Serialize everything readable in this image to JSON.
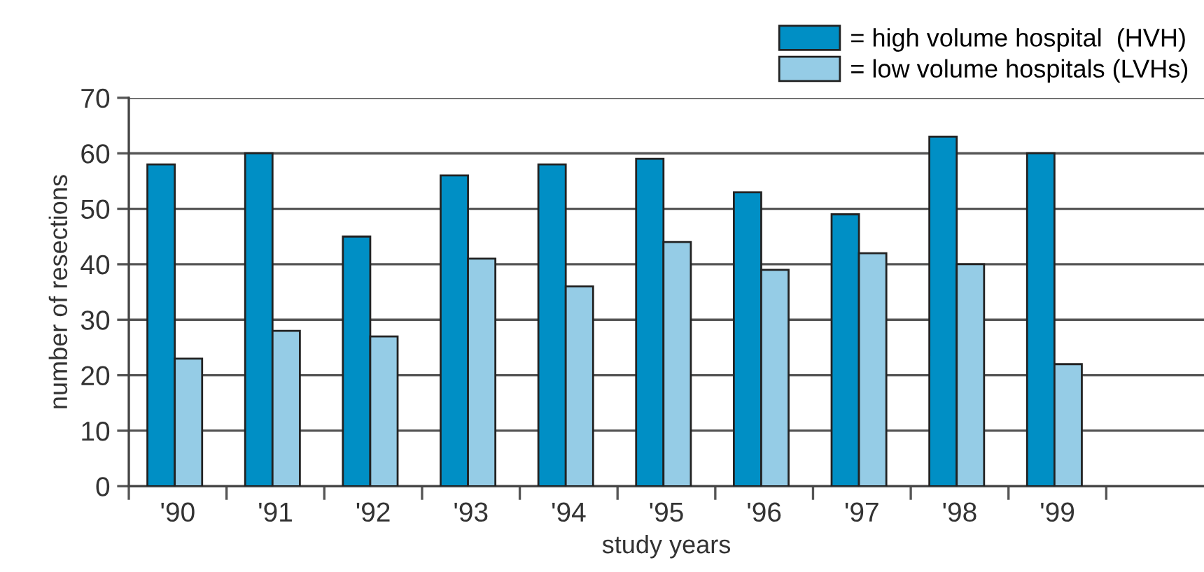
{
  "chart_data": {
    "type": "bar",
    "xlabel": "study years",
    "ylabel": "number of resections",
    "categories": [
      "'90",
      "'91",
      "'92",
      "'93",
      "'94",
      "'95",
      "'96",
      "'97",
      "'98",
      "'99",
      null
    ],
    "series": [
      {
        "name": "= high volume hospital  (HVH)",
        "color": "#008fc5",
        "values": [
          58,
          60,
          45,
          56,
          58,
          59,
          53,
          49,
          63,
          60,
          null
        ]
      },
      {
        "name": "= low volume hospitals (LVHs)",
        "color": "#95cce6",
        "values": [
          23,
          28,
          27,
          41,
          36,
          44,
          39,
          42,
          40,
          22,
          null
        ]
      }
    ],
    "ylim": [
      0,
      70
    ],
    "yticks": [
      0,
      10,
      20,
      30,
      40,
      50,
      60,
      70
    ],
    "grid": "y",
    "legend": "top right"
  }
}
